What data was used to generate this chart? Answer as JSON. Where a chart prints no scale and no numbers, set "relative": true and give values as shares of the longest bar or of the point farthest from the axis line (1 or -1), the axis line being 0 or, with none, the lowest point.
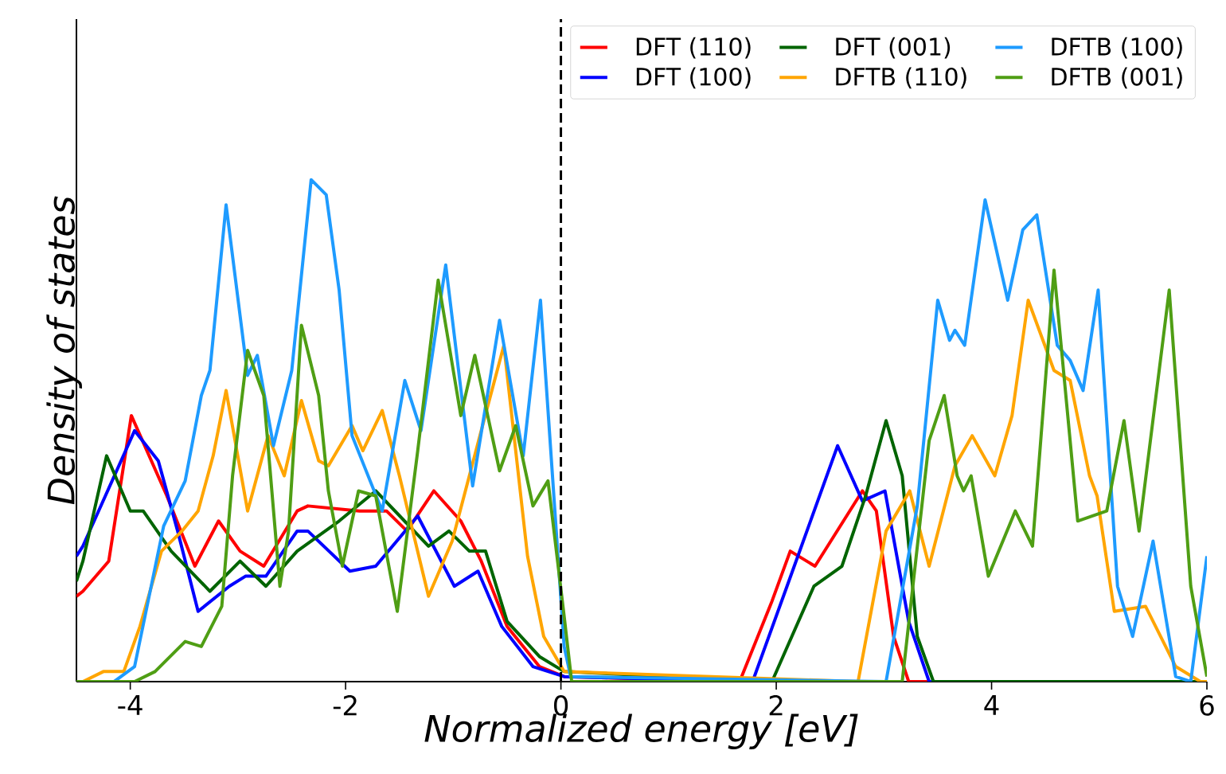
{
  "chart_data": {
    "type": "line",
    "relative": true,
    "xlabel": "*Normalized energy [eV]*",
    "ylabel": "*Density of states*",
    "xlim": [
      -4.5,
      6
    ],
    "xticks": [
      -4,
      -2,
      0,
      2,
      4,
      6
    ],
    "legend": "top right",
    "marker": "none",
    "line_style": "solid",
    "grid": false,
    "ref_lines": [
      {
        "axis": "x",
        "value": 0,
        "color": "#000000",
        "line_style": "dashed"
      }
    ],
    "series": [
      {
        "name": "DFT (110)",
        "color": "#ff0000",
        "x": [
          -4.5,
          -4.44,
          -4.2,
          -3.99,
          -3.66,
          -3.4,
          -3.18,
          -2.98,
          -2.76,
          -2.45,
          -2.35,
          -1.87,
          -1.62,
          -1.43,
          -1.18,
          -0.93,
          -0.74,
          -0.5,
          -0.2,
          0.03,
          1.66,
          1.96,
          2.13,
          2.36,
          2.8,
          2.93,
          3.09,
          3.23,
          6
        ],
        "values": [
          0.17,
          0.18,
          0.24,
          0.53,
          0.37,
          0.23,
          0.32,
          0.26,
          0.23,
          0.34,
          0.35,
          0.34,
          0.34,
          0.3,
          0.38,
          0.32,
          0.24,
          0.11,
          0.03,
          0.01,
          0,
          0.16,
          0.26,
          0.23,
          0.38,
          0.34,
          0.09,
          0,
          0
        ]
      },
      {
        "name": "DFT (100)",
        "color": "#0000ff",
        "x": [
          -4.5,
          -4.44,
          -3.96,
          -3.74,
          -3.56,
          -3.37,
          -3.08,
          -2.93,
          -2.74,
          -2.45,
          -2.35,
          -1.96,
          -1.72,
          -1.33,
          -0.99,
          -0.77,
          -0.55,
          -0.26,
          0.03,
          1.78,
          2.1,
          2.57,
          2.8,
          3.01,
          3.23,
          3.42,
          6
        ],
        "values": [
          0.25,
          0.27,
          0.5,
          0.44,
          0.3,
          0.14,
          0.19,
          0.21,
          0.21,
          0.3,
          0.3,
          0.22,
          0.23,
          0.33,
          0.19,
          0.22,
          0.11,
          0.03,
          0.01,
          0,
          0.19,
          0.47,
          0.36,
          0.38,
          0.12,
          0,
          0
        ]
      },
      {
        "name": "DFT (001)",
        "color": "#006400",
        "x": [
          -4.5,
          -4.44,
          -4.22,
          -4.0,
          -3.88,
          -3.62,
          -3.26,
          -2.98,
          -2.74,
          -2.45,
          -2.06,
          -1.72,
          -1.23,
          -1.04,
          -0.85,
          -0.7,
          -0.5,
          -0.2,
          0.03,
          1.96,
          2.35,
          2.61,
          2.83,
          3.02,
          3.17,
          3.31,
          3.46,
          6
        ],
        "values": [
          0.2,
          0.24,
          0.45,
          0.34,
          0.34,
          0.26,
          0.18,
          0.24,
          0.19,
          0.26,
          0.32,
          0.38,
          0.27,
          0.3,
          0.26,
          0.26,
          0.12,
          0.05,
          0.02,
          0,
          0.19,
          0.23,
          0.37,
          0.52,
          0.41,
          0.09,
          0,
          0
        ]
      },
      {
        "name": "DFTB (110)",
        "color": "#ffa500",
        "x": [
          -4.5,
          -4.44,
          -4.25,
          -4.06,
          -3.91,
          -3.71,
          -3.52,
          -3.37,
          -3.23,
          -3.11,
          -2.91,
          -2.72,
          -2.57,
          -2.41,
          -2.25,
          -2.16,
          -1.94,
          -1.84,
          -1.66,
          -1.5,
          -1.23,
          -1.01,
          -0.74,
          -0.53,
          -0.31,
          -0.16,
          0.03,
          2.76,
          3.02,
          3.24,
          3.42,
          3.66,
          3.82,
          4.03,
          4.19,
          4.34,
          4.58,
          4.73,
          4.91,
          4.98,
          5.14,
          5.43,
          5.71,
          5.94,
          6
        ],
        "values": [
          0,
          0,
          0.02,
          0.02,
          0.11,
          0.26,
          0.3,
          0.34,
          0.45,
          0.58,
          0.34,
          0.49,
          0.41,
          0.56,
          0.44,
          0.43,
          0.51,
          0.46,
          0.54,
          0.41,
          0.17,
          0.28,
          0.5,
          0.67,
          0.25,
          0.09,
          0.02,
          0,
          0.3,
          0.38,
          0.23,
          0.43,
          0.49,
          0.41,
          0.53,
          0.76,
          0.62,
          0.6,
          0.41,
          0.37,
          0.14,
          0.15,
          0.03,
          0,
          0
        ]
      },
      {
        "name": "DFTB (100)",
        "color": "#1e9bff",
        "x": [
          -4.5,
          -4.15,
          -3.96,
          -3.69,
          -3.49,
          -3.34,
          -3.26,
          -3.11,
          -2.91,
          -2.82,
          -2.67,
          -2.5,
          -2.32,
          -2.18,
          -2.06,
          -1.94,
          -1.66,
          -1.45,
          -1.3,
          -1.07,
          -0.82,
          -0.57,
          -0.35,
          -0.19,
          0.03,
          0.09,
          3.02,
          3.31,
          3.5,
          3.61,
          3.66,
          3.75,
          3.94,
          4.15,
          4.29,
          4.42,
          4.61,
          4.73,
          4.85,
          4.99,
          5.17,
          5.31,
          5.5,
          5.71,
          5.85,
          6
        ],
        "values": [
          0,
          0,
          0.03,
          0.31,
          0.4,
          0.57,
          0.62,
          0.95,
          0.61,
          0.65,
          0.47,
          0.62,
          1.0,
          0.97,
          0.78,
          0.49,
          0.34,
          0.6,
          0.5,
          0.83,
          0.39,
          0.72,
          0.45,
          0.76,
          0.07,
          0.01,
          0,
          0.35,
          0.76,
          0.68,
          0.7,
          0.67,
          0.96,
          0.76,
          0.9,
          0.93,
          0.67,
          0.64,
          0.58,
          0.78,
          0.19,
          0.09,
          0.28,
          0.01,
          0,
          0.25
        ]
      },
      {
        "name": "DFTB (001)",
        "color": "#4f9e14",
        "x": [
          -4.5,
          -3.96,
          -3.77,
          -3.49,
          -3.34,
          -3.15,
          -3.05,
          -2.91,
          -2.76,
          -2.61,
          -2.53,
          -2.41,
          -2.25,
          -2.16,
          -2.03,
          -1.88,
          -1.72,
          -1.52,
          -1.33,
          -1.14,
          -0.93,
          -0.8,
          -0.57,
          -0.42,
          -0.26,
          -0.12,
          0.03,
          0.1,
          3.17,
          3.42,
          3.56,
          3.68,
          3.74,
          3.81,
          3.97,
          4.22,
          4.38,
          4.58,
          4.8,
          5.07,
          5.23,
          5.37,
          5.65,
          5.85,
          6
        ],
        "values": [
          0,
          0,
          0.02,
          0.08,
          0.07,
          0.15,
          0.41,
          0.66,
          0.57,
          0.19,
          0.3,
          0.71,
          0.57,
          0.38,
          0.23,
          0.38,
          0.37,
          0.14,
          0.46,
          0.8,
          0.53,
          0.65,
          0.42,
          0.51,
          0.35,
          0.4,
          0.13,
          0,
          0,
          0.48,
          0.57,
          0.41,
          0.38,
          0.41,
          0.21,
          0.34,
          0.27,
          0.82,
          0.32,
          0.34,
          0.52,
          0.3,
          0.78,
          0.19,
          0.01
        ]
      }
    ]
  }
}
